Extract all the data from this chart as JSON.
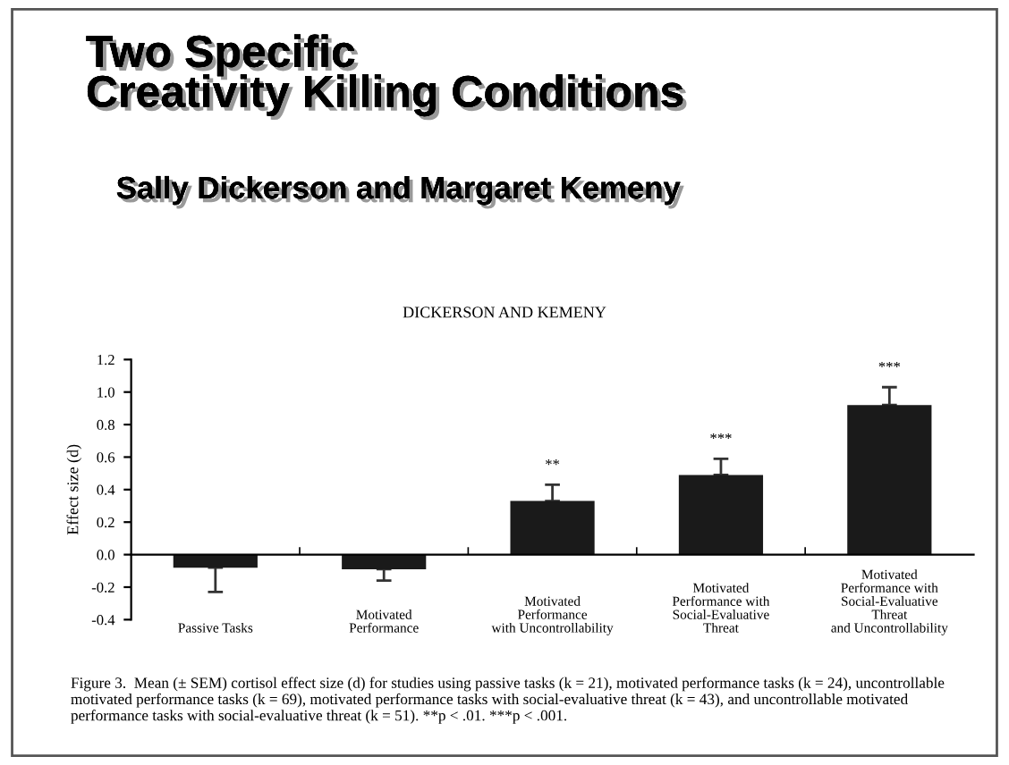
{
  "chart_data": {
    "type": "bar",
    "title": "Two Specific\nCreativity Killing Conditions",
    "subtitle": "Sally Dickerson and Margaret Kemeny",
    "ylabel": "Effect size (d)",
    "categories": [
      "Passive Tasks",
      "Motivated\nPerformance",
      "Motivated\nPerformance\nwith Uncontrollability",
      "Motivated\nPerformance with\nSocial-Evaluative\nThreat",
      "Motivated\nPerformance with\nSocial-Evaluative\nThreat\nand Uncontrollability"
    ],
    "values": [
      -0.08,
      -0.09,
      0.33,
      0.49,
      0.92
    ],
    "errors": [
      [
        -0.23,
        -0.08
      ],
      [
        -0.16,
        -0.09
      ],
      [
        0.33,
        0.43
      ],
      [
        0.49,
        0.59
      ],
      [
        0.92,
        1.03
      ]
    ],
    "color": "#1a1a1a",
    "ylim": [
      -0.4,
      1.2
    ],
    "yticks": [
      {
        "value": -0.4,
        "label": "-0.4"
      },
      {
        "value": -0.2,
        "label": "-0.2"
      },
      {
        "value": 0.0,
        "label": "0.0"
      },
      {
        "value": 0.2,
        "label": "0.2"
      },
      {
        "value": 0.4,
        "label": "0.4"
      },
      {
        "value": 0.6,
        "label": "0.6"
      },
      {
        "value": 0.8,
        "label": "0.8"
      },
      {
        "value": 1.0,
        "label": "1.0"
      },
      {
        "value": 1.2,
        "label": "1.2"
      }
    ],
    "annotations": [
      "DICKERSON AND KEMENY",
      {
        "text": "**",
        "x": "Motivated\nPerformance\nwith Uncontrollability",
        "y": 0.43
      },
      {
        "text": "***",
        "x": "Motivated\nPerformance with\nSocial-Evaluative\nThreat",
        "y": 0.59
      },
      {
        "text": "***",
        "x": "Motivated\nPerformance with\nSocial-Evaluative\nThreat\nand Uncontrollability",
        "y": 1.03
      },
      "Figure 3.  Mean (± SEM) cortisol effect size (d) for studies using passive tasks (k = 21), motivated performance tasks (k = 24), uncontrollable motivated performance tasks (k = 69), motivated performance tasks with social-evaluative threat (k = 43), and uncontrollable motivated performance tasks with social-evaluative threat (k = 51). **p < .01. ***p < .001."
    ],
    "grid": false
  }
}
